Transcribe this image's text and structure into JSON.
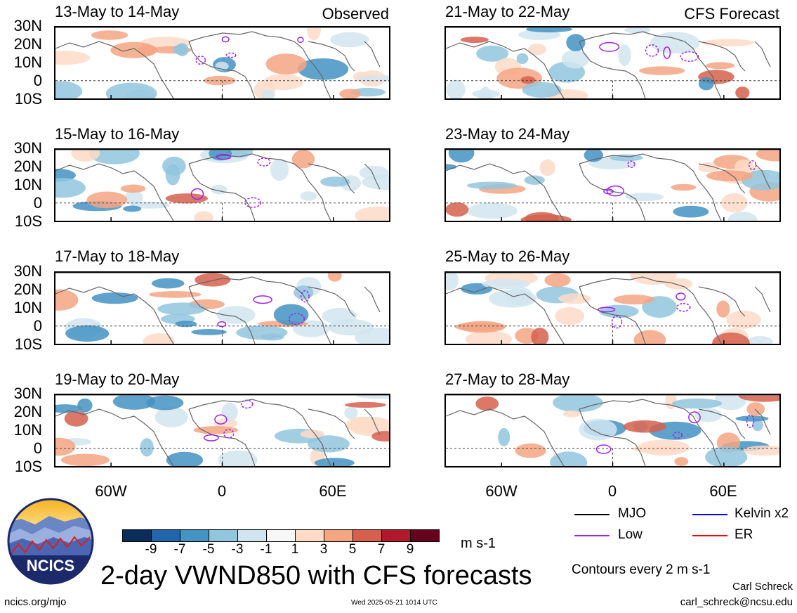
{
  "panels_left": [
    {
      "title": "13-May to 14-May",
      "tag": "Observed"
    },
    {
      "title": "15-May to 16-May",
      "tag": ""
    },
    {
      "title": "17-May to 18-May",
      "tag": ""
    },
    {
      "title": "19-May to 20-May",
      "tag": ""
    }
  ],
  "panels_right": [
    {
      "title": "21-May to 22-May",
      "tag": "CFS Forecast"
    },
    {
      "title": "23-May to 24-May",
      "tag": ""
    },
    {
      "title": "25-May to 26-May",
      "tag": ""
    },
    {
      "title": "27-May to 28-May",
      "tag": ""
    }
  ],
  "lat_labels": [
    "30N",
    "20N",
    "10N",
    "0",
    "10S"
  ],
  "lon_labels": [
    "60W",
    "0",
    "60E"
  ],
  "colorbar": {
    "labels": [
      "-9",
      "-7",
      "-5",
      "-3",
      "-1",
      "1",
      "3",
      "5",
      "7",
      "9"
    ],
    "colors": [
      "#0b2d5c",
      "#2166ac",
      "#4393c3",
      "#92c5de",
      "#d1e5f0",
      "#f7f7f7",
      "#fddbc7",
      "#f4a582",
      "#d6604d",
      "#b2182b",
      "#67001f"
    ],
    "units": "m s-1"
  },
  "legend": {
    "mjo": "MJO",
    "kelvin": "Kelvin x2",
    "low": "Low",
    "er": "ER",
    "mjo_color": "#000000",
    "kelvin_color": "#0000ff",
    "low_color": "#a020f0",
    "er_color": "#ff0000"
  },
  "main_title": "2-day VWND850 with CFS forecasts",
  "contours_note": "Contours every 2 m s-1",
  "logo_text": "NCICS",
  "site": "ncics.org/mjo",
  "timestamp": "Wed 2025-05-21 1014 UTC",
  "author": "Carl Schreck",
  "email": "carl_schreck@ncsu.edu"
}
